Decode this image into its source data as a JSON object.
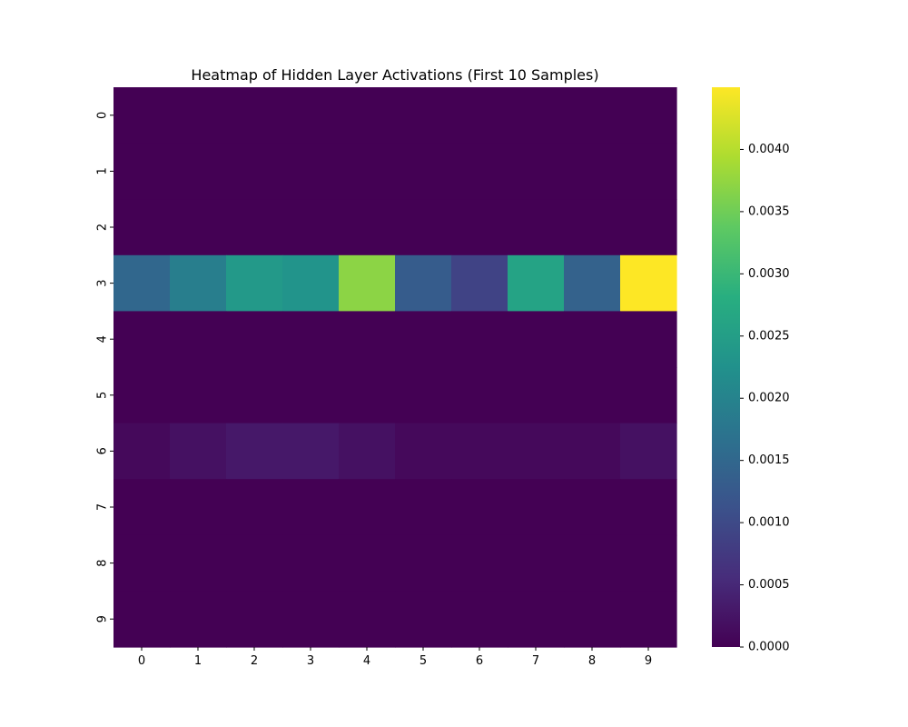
{
  "chart_data": {
    "type": "heatmap",
    "title": "Heatmap of Hidden Layer Activations (First 10 Samples)",
    "xlabel": "",
    "ylabel": "",
    "colormap": "viridis",
    "x_ticks": [
      "0",
      "1",
      "2",
      "3",
      "4",
      "5",
      "6",
      "7",
      "8",
      "9"
    ],
    "y_ticks": [
      "0",
      "1",
      "2",
      "3",
      "4",
      "5",
      "6",
      "7",
      "8",
      "9"
    ],
    "values": [
      [
        0,
        0,
        0,
        0,
        0,
        0,
        0,
        0,
        0,
        0
      ],
      [
        0,
        0,
        0,
        0,
        0,
        0,
        0,
        0,
        0,
        0
      ],
      [
        0,
        0,
        0,
        0,
        0,
        0,
        0,
        0,
        0,
        0
      ],
      [
        0.0015,
        0.0019,
        0.0024,
        0.0023,
        0.0037,
        0.0013,
        0.0009,
        0.0026,
        0.0014,
        0.0045
      ],
      [
        0,
        0,
        0,
        0,
        0,
        0,
        0,
        0,
        0,
        0
      ],
      [
        0,
        0,
        0,
        0,
        0,
        0,
        0,
        0,
        0,
        0
      ],
      [
        0.0001,
        0.0002,
        0.0003,
        0.0003,
        0.0002,
        0.0001,
        0.0001,
        0.0001,
        0.0001,
        0.0002
      ],
      [
        0,
        0,
        0,
        0,
        0,
        0,
        0,
        0,
        0,
        0
      ],
      [
        0,
        0,
        0,
        0,
        0,
        0,
        0,
        0,
        0,
        0
      ],
      [
        0,
        0,
        0,
        0,
        0,
        0,
        0,
        0,
        0,
        0
      ]
    ],
    "colorbar": {
      "range": [
        0,
        0.0045
      ],
      "ticks": [
        0,
        0.0005,
        0.001,
        0.0015,
        0.002,
        0.0025,
        0.003,
        0.0035,
        0.004
      ],
      "tick_labels": [
        "0.0000",
        "0.0005",
        "0.0010",
        "0.0015",
        "0.0020",
        "0.0025",
        "0.0030",
        "0.0035",
        "0.0040"
      ]
    }
  }
}
